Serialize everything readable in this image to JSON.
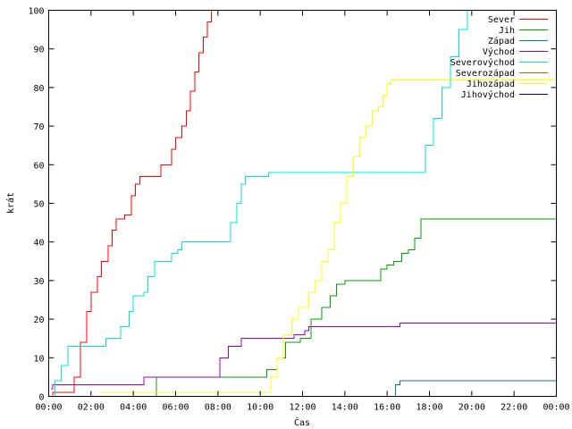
{
  "chart_data": {
    "type": "line",
    "title": "",
    "xlabel": "Čas",
    "ylabel": "krát",
    "xlim": [
      0,
      24
    ],
    "ylim": [
      0,
      100
    ],
    "x_ticks": [
      "00:00",
      "02:00",
      "04:00",
      "06:00",
      "08:00",
      "10:00",
      "12:00",
      "14:00",
      "16:00",
      "18:00",
      "20:00",
      "22:00",
      "00:00"
    ],
    "y_ticks": [
      "0",
      "10",
      "20",
      "30",
      "40",
      "50",
      "60",
      "70",
      "80",
      "90",
      "100"
    ],
    "grid": false,
    "legend_position": "top-right",
    "step": true,
    "series": [
      {
        "name": "Sever",
        "color": "#ff0000",
        "points": [
          [
            0.1,
            0
          ],
          [
            0.2,
            1
          ],
          [
            1.0,
            1
          ],
          [
            1.2,
            5
          ],
          [
            1.5,
            14
          ],
          [
            1.8,
            22
          ],
          [
            2.0,
            27
          ],
          [
            2.3,
            31
          ],
          [
            2.5,
            35
          ],
          [
            2.8,
            39
          ],
          [
            3.0,
            43
          ],
          [
            3.2,
            46
          ],
          [
            3.6,
            47
          ],
          [
            3.9,
            52
          ],
          [
            4.1,
            55
          ],
          [
            4.3,
            57
          ],
          [
            5.0,
            57
          ],
          [
            5.3,
            60
          ],
          [
            5.6,
            60
          ],
          [
            5.8,
            64
          ],
          [
            6.0,
            67
          ],
          [
            6.3,
            70
          ],
          [
            6.5,
            74
          ],
          [
            6.7,
            79
          ],
          [
            6.9,
            84
          ],
          [
            7.1,
            89
          ],
          [
            7.3,
            93
          ],
          [
            7.5,
            97
          ],
          [
            7.7,
            100
          ]
        ]
      },
      {
        "name": "Jih",
        "color": "#00a000",
        "points": [
          [
            5.0,
            0
          ],
          [
            5.1,
            5
          ],
          [
            7.5,
            5
          ],
          [
            10.1,
            5
          ],
          [
            10.3,
            7
          ],
          [
            10.8,
            10
          ],
          [
            11.2,
            14
          ],
          [
            11.9,
            15
          ],
          [
            12.4,
            20
          ],
          [
            12.9,
            23
          ],
          [
            13.3,
            26
          ],
          [
            13.6,
            29
          ],
          [
            14.0,
            30
          ],
          [
            15.5,
            30
          ],
          [
            15.7,
            33
          ],
          [
            16.0,
            34
          ],
          [
            16.3,
            35
          ],
          [
            16.7,
            37
          ],
          [
            17.0,
            38
          ],
          [
            17.3,
            41
          ],
          [
            17.6,
            46
          ],
          [
            24.0,
            46
          ]
        ]
      },
      {
        "name": "Západ",
        "color": "#008080",
        "points": [
          [
            16.2,
            0
          ],
          [
            16.4,
            3
          ],
          [
            16.6,
            4
          ],
          [
            24.0,
            4
          ]
        ]
      },
      {
        "name": "Východ",
        "color": "#9a00c8",
        "points": [
          [
            0.1,
            2
          ],
          [
            0.2,
            3
          ],
          [
            4.4,
            3
          ],
          [
            4.5,
            5
          ],
          [
            7.9,
            5
          ],
          [
            8.1,
            10
          ],
          [
            8.5,
            13
          ],
          [
            9.1,
            15
          ],
          [
            11.4,
            15
          ],
          [
            11.6,
            16
          ],
          [
            12.1,
            17
          ],
          [
            12.3,
            18
          ],
          [
            16.3,
            18
          ],
          [
            16.6,
            19
          ],
          [
            24.0,
            19
          ]
        ]
      },
      {
        "name": "Severovýchod",
        "color": "#00e0e0",
        "points": [
          [
            0.1,
            0
          ],
          [
            0.3,
            4
          ],
          [
            0.6,
            8
          ],
          [
            0.9,
            13
          ],
          [
            2.6,
            13
          ],
          [
            2.7,
            15
          ],
          [
            3.2,
            15
          ],
          [
            3.4,
            18
          ],
          [
            3.8,
            22
          ],
          [
            4.0,
            26
          ],
          [
            4.5,
            27
          ],
          [
            4.7,
            31
          ],
          [
            5.0,
            35
          ],
          [
            5.6,
            35
          ],
          [
            5.8,
            37
          ],
          [
            6.1,
            38
          ],
          [
            6.3,
            40
          ],
          [
            8.3,
            40
          ],
          [
            8.6,
            45
          ],
          [
            8.9,
            50
          ],
          [
            9.1,
            55
          ],
          [
            9.3,
            57
          ],
          [
            10.3,
            57
          ],
          [
            10.4,
            58
          ],
          [
            17.5,
            58
          ],
          [
            17.8,
            65
          ],
          [
            18.2,
            72
          ],
          [
            18.6,
            80
          ],
          [
            19.0,
            88
          ],
          [
            19.4,
            95
          ],
          [
            19.8,
            100
          ]
        ]
      },
      {
        "name": "Severozápad",
        "color": "#c06000",
        "points": []
      },
      {
        "name": "Jihozápad",
        "color": "#ffff00",
        "points": [
          [
            2.4,
            1
          ],
          [
            10.4,
            1
          ],
          [
            10.5,
            5
          ],
          [
            10.8,
            10
          ],
          [
            11.1,
            16
          ],
          [
            11.5,
            20
          ],
          [
            11.8,
            23
          ],
          [
            12.3,
            27
          ],
          [
            12.6,
            30
          ],
          [
            12.9,
            35
          ],
          [
            13.2,
            38
          ],
          [
            13.5,
            45
          ],
          [
            13.8,
            50
          ],
          [
            14.1,
            57
          ],
          [
            14.4,
            62
          ],
          [
            14.7,
            67
          ],
          [
            15.0,
            70
          ],
          [
            15.3,
            74
          ],
          [
            15.6,
            75
          ],
          [
            15.8,
            78
          ],
          [
            16.0,
            81
          ],
          [
            16.2,
            82
          ],
          [
            24.0,
            82
          ]
        ]
      },
      {
        "name": "Jihovýchod",
        "color": "#0000a0",
        "points": []
      }
    ]
  }
}
